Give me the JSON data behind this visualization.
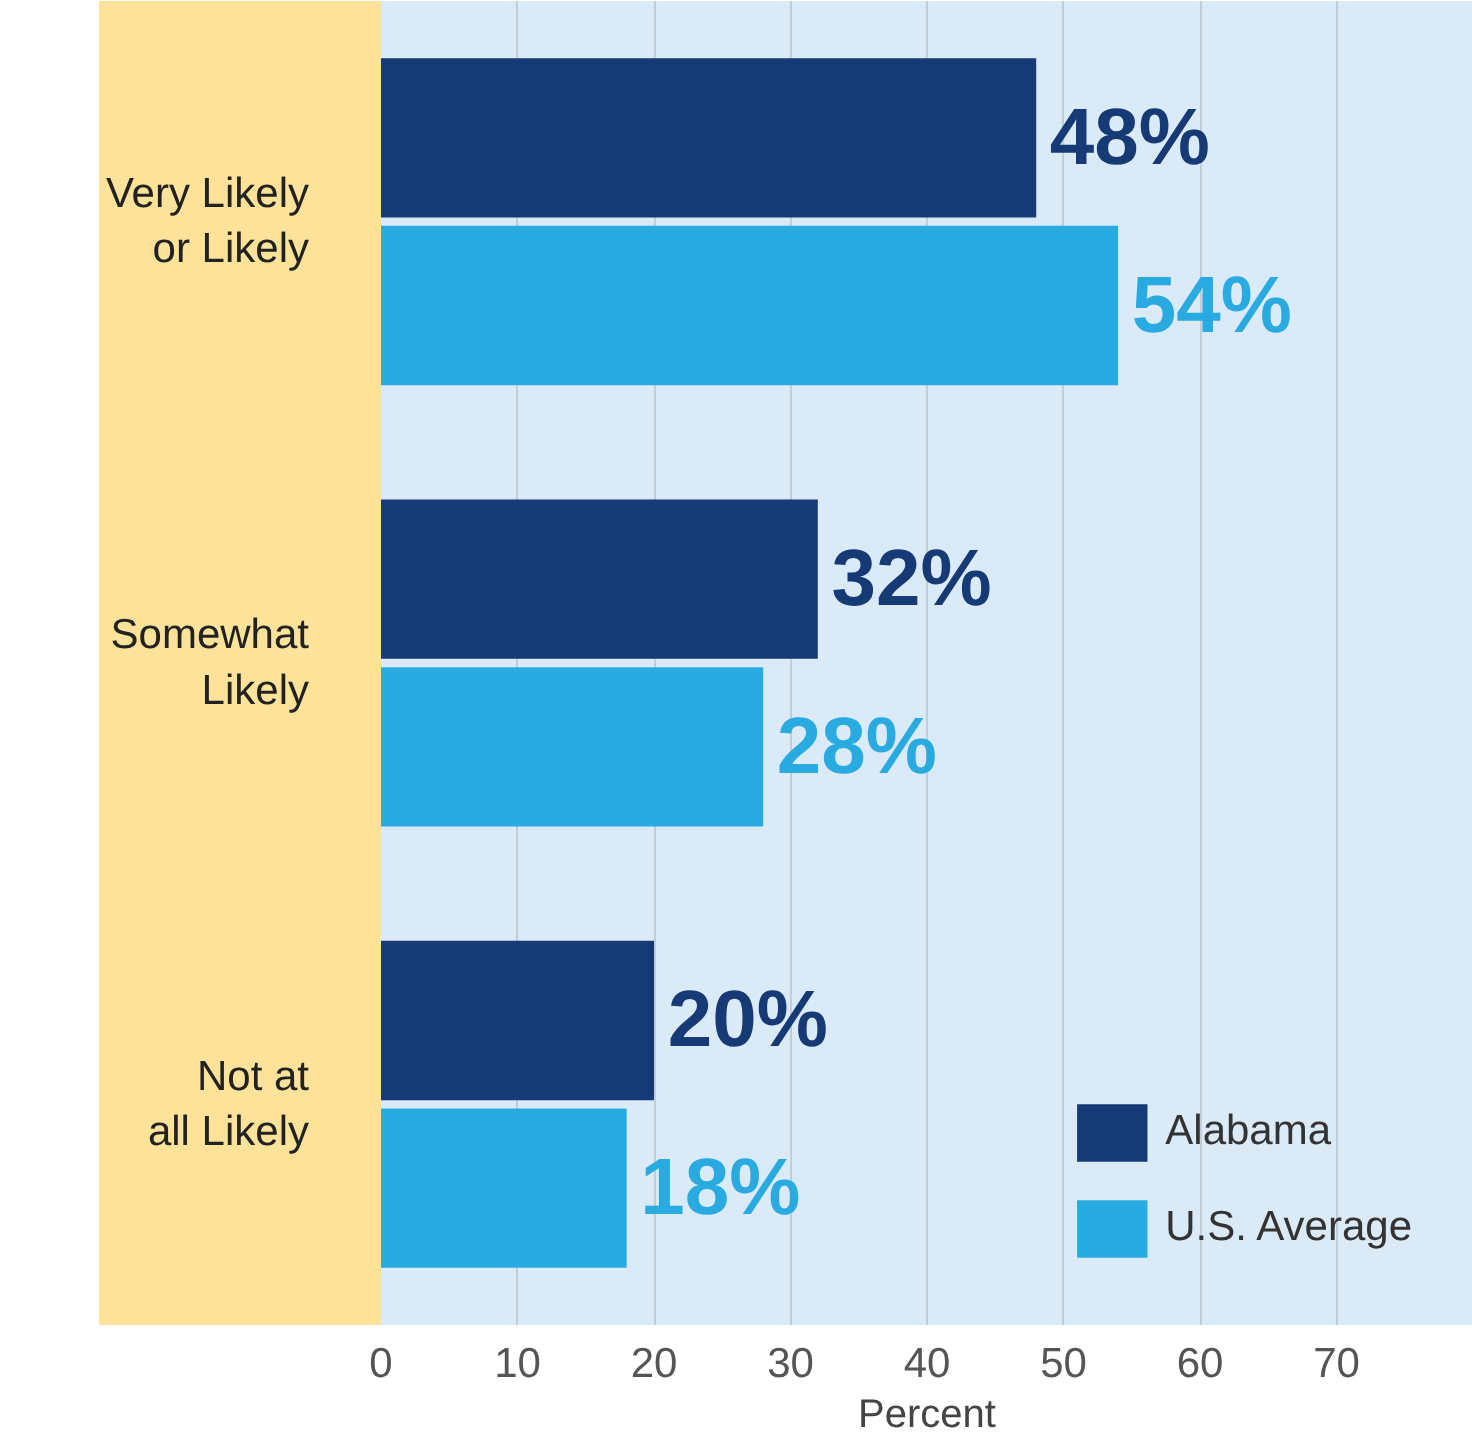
{
  "chart_data": {
    "type": "bar",
    "orientation": "horizontal",
    "xlabel": "Percent",
    "categories": [
      "Very Likely\nor Likely",
      "Somewhat\nLikely",
      "Not at\nall Likely"
    ],
    "series": [
      {
        "name": "Alabama",
        "color": "#163a75",
        "values": [
          48,
          32,
          20
        ],
        "value_labels": [
          "48%",
          "32%",
          "20%"
        ]
      },
      {
        "name": "U.S. Average",
        "color": "#29abe2",
        "values": [
          54,
          28,
          18
        ],
        "value_labels": [
          "54%",
          "28%",
          "18%"
        ]
      }
    ],
    "xlim": [
      0,
      80
    ],
    "xticks": [
      0,
      10,
      20,
      30,
      40,
      50,
      60,
      70
    ],
    "grid": "x",
    "legend": "bottom right"
  }
}
